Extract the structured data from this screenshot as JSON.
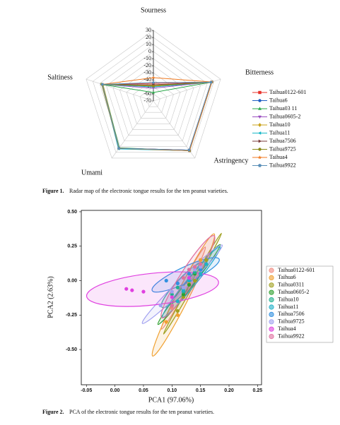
{
  "chart_data": [
    {
      "type": "radar",
      "caption_label": "Figure 1.",
      "caption": "Radar map of the electronic tongue results for the ten peanut varieties.",
      "categories": [
        "Sourness",
        "Bitterness",
        "Astringency",
        "Umami",
        "Saltiness"
      ],
      "rlim": [
        -70,
        30
      ],
      "rticks": [
        30,
        20,
        10,
        0,
        -10,
        -20,
        -30,
        -40,
        -50,
        -60,
        -70
      ],
      "grid": true,
      "series": [
        {
          "name": "Taihua0122-601",
          "color": "#e8312a",
          "marker": "square",
          "values": [
            -45,
            17,
            17,
            13,
            6
          ]
        },
        {
          "name": "Taihua6",
          "color": "#1f5fc4",
          "marker": "circle",
          "values": [
            -50,
            16,
            16,
            13,
            6
          ]
        },
        {
          "name": "Taihua03 11",
          "color": "#2aa84a",
          "marker": "triangle-up",
          "values": [
            -58,
            16,
            17,
            12,
            5
          ]
        },
        {
          "name": "Taihua0605-2",
          "color": "#9a4fc0",
          "marker": "triangle-down",
          "values": [
            -52,
            17,
            16,
            13,
            6
          ]
        },
        {
          "name": "Taihua10",
          "color": "#c9a21a",
          "marker": "diamond",
          "values": [
            -48,
            16,
            17,
            13,
            5
          ]
        },
        {
          "name": "Taihua11",
          "color": "#19b8c8",
          "marker": "triangle-left",
          "values": [
            -50,
            17,
            17,
            14,
            6
          ]
        },
        {
          "name": "Taihua7506",
          "color": "#7a3b3b",
          "marker": "triangle-right",
          "values": [
            -47,
            16,
            16,
            13,
            6
          ]
        },
        {
          "name": "Taihua9725",
          "color": "#8a8a18",
          "marker": "circle",
          "values": [
            -49,
            17,
            17,
            13,
            7
          ]
        },
        {
          "name": "Taihua4",
          "color": "#f07a20",
          "marker": "star",
          "values": [
            -37,
            17,
            17,
            13,
            6
          ]
        },
        {
          "name": "Taihua9922",
          "color": "#5a8fb8",
          "marker": "pentagon",
          "values": [
            -44,
            16,
            16,
            13,
            6
          ]
        }
      ]
    },
    {
      "type": "scatter",
      "caption_label": "Figure 2.",
      "caption": "PCA of the electronic tongue results for the ten peanut varieties.",
      "x_label": "PCA1 (97.06%)",
      "y_label": "PCA2 (2.63%)",
      "xlim": [
        -0.059,
        0.257
      ],
      "ylim": [
        -0.756,
        0.51
      ],
      "xticks": [
        -0.05,
        {
          "value": 0,
          "label": "0.00"
        },
        0.05,
        {
          "value": 0.1,
          "label": "0.10"
        },
        0.15,
        {
          "value": 0.2,
          "label": "0.20"
        },
        0.25
      ],
      "yticks": [
        {
          "value": 0.5,
          "label": "0.50"
        },
        0.25,
        {
          "value": 0,
          "label": "0.00"
        },
        -0.25,
        {
          "value": -0.5,
          "label": "-0.50"
        }
      ],
      "series": [
        {
          "name": "Taihua0122-601",
          "color": "#f08a80",
          "x": [
            0.1,
            0.12,
            0.13,
            0.11,
            0.14
          ],
          "y": [
            -0.2,
            -0.05,
            0.05,
            -0.15,
            0.08
          ]
        },
        {
          "name": "Taihua6",
          "color": "#f0a030",
          "x": [
            0.09,
            0.11,
            0.12,
            0.13,
            0.15
          ],
          "y": [
            -0.3,
            -0.25,
            -0.1,
            -0.02,
            0.15
          ]
        },
        {
          "name": "Taihua0311",
          "color": "#a0a020",
          "x": [
            0.11,
            0.12,
            0.14,
            0.15,
            0.16
          ],
          "y": [
            -0.22,
            -0.12,
            0.0,
            0.08,
            0.15
          ]
        },
        {
          "name": "Taihua0605-2",
          "color": "#2ea02e",
          "x": [
            0.1,
            0.12,
            0.13,
            0.14,
            0.16
          ],
          "y": [
            -0.18,
            -0.1,
            -0.03,
            0.05,
            0.12
          ]
        },
        {
          "name": "Taihua10",
          "color": "#20b090",
          "x": [
            0.1,
            0.11,
            0.12,
            0.13,
            0.14
          ],
          "y": [
            -0.1,
            -0.05,
            -0.08,
            0.02,
            0.06
          ]
        },
        {
          "name": "Taihua11",
          "color": "#20b0c8",
          "x": [
            0.11,
            0.12,
            0.13,
            0.15,
            0.16
          ],
          "y": [
            -0.15,
            -0.07,
            0.0,
            0.05,
            0.12
          ]
        },
        {
          "name": "Taihua7506",
          "color": "#3090e0",
          "x": [
            0.09,
            0.11,
            0.13,
            0.14,
            0.15
          ],
          "y": [
            0.0,
            -0.02,
            0.05,
            0.1,
            0.08
          ]
        },
        {
          "name": "Taihua9725",
          "color": "#a0a0f0",
          "x": [
            0.08,
            0.1,
            0.12,
            0.14,
            0.15
          ],
          "y": [
            -0.18,
            -0.08,
            -0.05,
            0.08,
            0.1
          ]
        },
        {
          "name": "Taihua4",
          "color": "#e040e0",
          "x": [
            0.02,
            0.03,
            0.05,
            0.1,
            0.13
          ],
          "y": [
            -0.06,
            -0.07,
            -0.08,
            -0.12,
            0.02
          ]
        },
        {
          "name": "Taihua9922",
          "color": "#e070a0",
          "x": [
            0.12,
            0.13,
            0.14,
            0.1,
            0.15
          ],
          "y": [
            0.02,
            0.08,
            0.1,
            -0.18,
            0.12
          ]
        }
      ]
    }
  ]
}
